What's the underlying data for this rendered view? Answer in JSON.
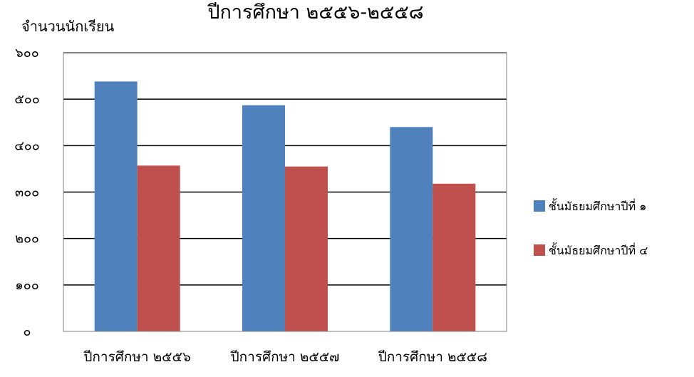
{
  "chart_data": {
    "type": "bar",
    "title": "ปีการศึกษา ๒๕๕๖-๒๕๕๘",
    "ylabel": "จำนวนนักเรียน",
    "xlabel": "",
    "categories": [
      "ปีการศึกษา ๒๕๕๖",
      "ปีการศึกษา ๒๕๕๗",
      "ปีการศึกษา ๒๕๕๘"
    ],
    "series": [
      {
        "name": "ชั้นมัธยมศึกษาปีที่ ๑",
        "values": [
          538,
          487,
          440
        ],
        "color": "#4F81BD"
      },
      {
        "name": "ชั้นมัธยมศึกษาปีที่ ๔",
        "values": [
          357,
          355,
          318
        ],
        "color": "#C0504D"
      }
    ],
    "ylim": [
      0,
      600
    ],
    "yticks": [
      0,
      100,
      200,
      300,
      400,
      500,
      600
    ],
    "ytick_labels": [
      "๐",
      "๑๐๐",
      "๒๐๐",
      "๓๐๐",
      "๔๐๐",
      "๕๐๐",
      "๖๐๐"
    ],
    "grid": "horizontal",
    "legend_position": "right"
  }
}
